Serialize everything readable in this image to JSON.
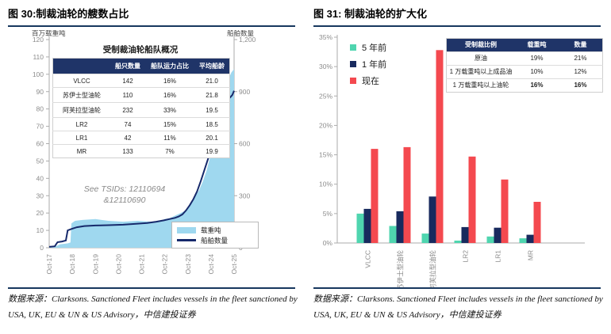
{
  "colors": {
    "accent_rule": "#17375E",
    "area_fill": "#9FD8EF",
    "line_navy": "#16296B",
    "table_header_bg": "#1F3468",
    "teal": "#4FD5AF",
    "navy_bar": "#182A5E",
    "red": "#F4494F",
    "tick_text": "#8C8C8C",
    "axis_line": "#ABABAB"
  },
  "figures": [
    {
      "title": "图 30:制裁油轮的艘数占比",
      "left_axis_label": "百万载重吨",
      "right_axis_label": "船舶数量",
      "inner_table": {
        "title": "受制裁油轮船队概况",
        "headers": [
          "",
          "船只数量",
          "船队运力占比",
          "平均船龄"
        ],
        "rows": [
          {
            "cells": [
              "VLCC",
              "142",
              "16%",
              "21.0"
            ],
            "bold": false
          },
          {
            "cells": [
              "苏伊士型油轮",
              "110",
              "16%",
              "21.8"
            ],
            "bold": false
          },
          {
            "cells": [
              "阿芙拉型油轮",
              "232",
              "33%",
              "19.5"
            ],
            "bold": false
          },
          {
            "cells": [
              "LR2",
              "74",
              "15%",
              "18.5"
            ],
            "bold": false
          },
          {
            "cells": [
              "LR1",
              "42",
              "11%",
              "20.1"
            ],
            "bold": false
          },
          {
            "cells": [
              "MR",
              "133",
              "7%",
              "19.9"
            ],
            "bold": false
          }
        ]
      },
      "annotation": {
        "line1": "See TSIDs: 12110694",
        "line2": "&12110690"
      },
      "legend": [
        {
          "label": "载重吨",
          "type": "area",
          "color": "#9FD8EF"
        },
        {
          "label": "船舶数量",
          "type": "line",
          "color": "#16296B"
        }
      ],
      "source": "数据来源：Clarksons. Sanctioned Fleet includes vessels in the fleet sanctioned by USA, UK, EU & UN & US Advisory，中信建投证券"
    },
    {
      "title": "图 31: 制裁油轮的扩大化",
      "inner_table": {
        "headers": [
          "受制裁比例",
          "载重吨",
          "数量"
        ],
        "rows": [
          {
            "cells": [
              "原油",
              "19%",
              "21%"
            ],
            "bold": false
          },
          {
            "cells": [
              "1 万载重吨以上成品油",
              "10%",
              "12%"
            ],
            "bold": false
          },
          {
            "cells": [
              "1 万载重吨以上油轮",
              "16%",
              "16%"
            ],
            "bold": true
          }
        ]
      },
      "source": "数据来源：Clarksons. Sanctioned Fleet includes vessels in the fleet sanctioned by USA, UK, EU & UN & US Advisory，中信建投证券"
    }
  ],
  "chart_data": [
    {
      "type": "area",
      "title": "受制裁油轮船队概况",
      "x_ticks": [
        "Oct-17",
        "Oct-18",
        "Oct-19",
        "Oct-20",
        "Oct-21",
        "Oct-22",
        "Oct-23",
        "Oct-24",
        "Oct-25"
      ],
      "left_axis": {
        "label": "百万载重吨",
        "min": 0,
        "max": 120,
        "step": 10
      },
      "right_axis": {
        "label": "船舶数量",
        "min": 0,
        "max": 1200,
        "step": 300
      },
      "legend_position": "bottom-right",
      "grid": false,
      "series": [
        {
          "name": "载重吨",
          "type": "area",
          "axis": "left",
          "color": "#9FD8EF",
          "points": [
            [
              0.0,
              0.5
            ],
            [
              0.04,
              1
            ],
            [
              0.06,
              2
            ],
            [
              0.1,
              2.5
            ],
            [
              0.115,
              3
            ],
            [
              0.12,
              14
            ],
            [
              0.14,
              15.5
            ],
            [
              0.18,
              16
            ],
            [
              0.25,
              16.5
            ],
            [
              0.32,
              15.5
            ],
            [
              0.4,
              15
            ],
            [
              0.48,
              15.5
            ],
            [
              0.55,
              15
            ],
            [
              0.6,
              15.5
            ],
            [
              0.625,
              16.5
            ],
            [
              0.65,
              17
            ],
            [
              0.68,
              18.5
            ],
            [
              0.71,
              20
            ],
            [
              0.73,
              21
            ],
            [
              0.75,
              22.5
            ],
            [
              0.77,
              26
            ],
            [
              0.79,
              30
            ],
            [
              0.81,
              33
            ],
            [
              0.83,
              38
            ],
            [
              0.85,
              44
            ],
            [
              0.87,
              52
            ],
            [
              0.89,
              62
            ],
            [
              0.91,
              72
            ],
            [
              0.93,
              82
            ],
            [
              0.95,
              90
            ],
            [
              0.97,
              97
            ],
            [
              0.985,
              101
            ],
            [
              1.0,
              103
            ]
          ]
        },
        {
          "name": "船舶数量",
          "type": "line",
          "axis": "right",
          "color": "#16296B",
          "points": [
            [
              0.0,
              5
            ],
            [
              0.03,
              8
            ],
            [
              0.045,
              32
            ],
            [
              0.07,
              36
            ],
            [
              0.09,
              42
            ],
            [
              0.1,
              100
            ],
            [
              0.12,
              108
            ],
            [
              0.15,
              118
            ],
            [
              0.19,
              125
            ],
            [
              0.25,
              128
            ],
            [
              0.32,
              130
            ],
            [
              0.4,
              133
            ],
            [
              0.47,
              138
            ],
            [
              0.53,
              143
            ],
            [
              0.58,
              150
            ],
            [
              0.62,
              158
            ],
            [
              0.65,
              165
            ],
            [
              0.68,
              172
            ],
            [
              0.7,
              180
            ],
            [
              0.72,
              192
            ],
            [
              0.74,
              215
            ],
            [
              0.76,
              245
            ],
            [
              0.78,
              280
            ],
            [
              0.8,
              325
            ],
            [
              0.82,
              385
            ],
            [
              0.84,
              450
            ],
            [
              0.86,
              515
            ],
            [
              0.88,
              580
            ],
            [
              0.9,
              650
            ],
            [
              0.92,
              735
            ],
            [
              0.935,
              775
            ],
            [
              0.95,
              820
            ],
            [
              0.96,
              845
            ],
            [
              0.97,
              858
            ],
            [
              0.98,
              868
            ],
            [
              0.99,
              880
            ],
            [
              1.0,
              905
            ]
          ]
        }
      ]
    },
    {
      "type": "bar",
      "categories": [
        "VLCC",
        "苏伊士型油轮",
        "阿芙拉型油轮",
        "LR2",
        "LR1",
        "MR"
      ],
      "ylim": [
        0,
        35
      ],
      "ytick_step": 5,
      "ytick_suffix": "%",
      "grid": false,
      "legend_position": "top-left",
      "series": [
        {
          "name": "5 年前",
          "color": "#4FD5AF",
          "values": [
            5.0,
            2.9,
            1.6,
            0.4,
            1.1,
            0.8
          ]
        },
        {
          "name": "1 年前",
          "color": "#182A5E",
          "values": [
            5.8,
            5.4,
            7.9,
            2.7,
            2.6,
            1.4
          ]
        },
        {
          "name": "现在",
          "color": "#F4494F",
          "values": [
            16.0,
            16.3,
            32.8,
            14.7,
            10.8,
            7.0
          ]
        }
      ]
    }
  ]
}
